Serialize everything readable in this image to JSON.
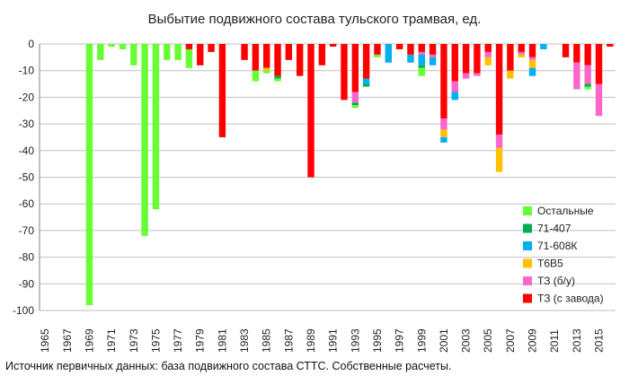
{
  "chart_data": {
    "type": "bar",
    "stacked": true,
    "title": "Выбытие подвижного состава тульского трамвая, ед.",
    "footer": "Источник первичных данных: база подвижного состава СТТС. Собственные расчеты.",
    "ylim": [
      -100,
      0
    ],
    "y_ticks": [
      0,
      -10,
      -20,
      -30,
      -40,
      -50,
      -60,
      -70,
      -80,
      -90,
      -100
    ],
    "x_start": 1965,
    "x_end": 2016,
    "x_tick_labels": [
      "1965",
      "1967",
      "1969",
      "1971",
      "1973",
      "1975",
      "1977",
      "1979",
      "1981",
      "1983",
      "1985",
      "1987",
      "1989",
      "1991",
      "1993",
      "1995",
      "1997",
      "1999",
      "2001",
      "2003",
      "2005",
      "2007",
      "2009",
      "2011",
      "2013",
      "2015"
    ],
    "grid": "horizontal",
    "legend_position": "right",
    "series": [
      {
        "name": "ТЗ (с завода)",
        "color": "#ff0000",
        "values": {
          "1978": 2,
          "1979": 8,
          "1980": 3,
          "1981": 35,
          "1983": 6,
          "1984": 10,
          "1985": 9,
          "1986": 12,
          "1987": 6,
          "1988": 12,
          "1989": 50,
          "1990": 8,
          "1991": 1,
          "1992": 21,
          "1993": 18,
          "1994": 13,
          "1995": 4,
          "1997": 2,
          "1998": 4,
          "1999": 3,
          "2000": 4,
          "2001": 28,
          "2002": 14,
          "2003": 11,
          "2004": 11,
          "2005": 3,
          "2006": 34,
          "2007": 10,
          "2008": 3,
          "2009": 5,
          "2012": 5,
          "2013": 7,
          "2014": 8,
          "2015": 15,
          "2016": 1
        }
      },
      {
        "name": "ТЗ (б/у)",
        "color": "#ff66cc",
        "values": {
          "1993": 4,
          "1999": 1,
          "2000": 1,
          "2001": 4,
          "2002": 4,
          "2003": 2,
          "2004": 1,
          "2005": 2,
          "2006": 5,
          "2008": 1,
          "2009": 1,
          "2013": 10,
          "2014": 7,
          "2015": 12
        }
      },
      {
        "name": "Т6В5",
        "color": "#ffc000",
        "values": {
          "1985": 1,
          "2001": 3,
          "2005": 3,
          "2006": 9,
          "2007": 3,
          "2008": 1,
          "2009": 3
        }
      },
      {
        "name": "71-608К",
        "color": "#00b0f0",
        "values": {
          "1994": 2,
          "1996": 7,
          "1998": 3,
          "1999": 4,
          "2000": 3,
          "2001": 2,
          "2002": 3,
          "2009": 3,
          "2010": 2
        }
      },
      {
        "name": "71-407",
        "color": "#00b050",
        "values": {
          "1986": 1,
          "1993": 1,
          "1994": 1,
          "1999": 1,
          "2014": 1
        }
      },
      {
        "name": "Остальные",
        "color": "#66ff33",
        "values": {
          "1969": 98,
          "1970": 6,
          "1971": 1,
          "1972": 2,
          "1973": 8,
          "1974": 72,
          "1975": 62,
          "1976": 6,
          "1977": 6,
          "1978": 7,
          "1984": 4,
          "1985": 1,
          "1986": 1,
          "1993": 1,
          "1995": 1,
          "1999": 3,
          "2014": 1
        }
      }
    ]
  }
}
